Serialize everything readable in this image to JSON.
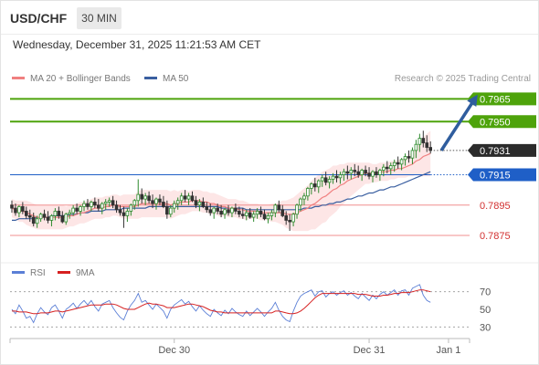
{
  "header": {
    "pair": "USD/CHF",
    "timeframe": "30 MIN",
    "datetime": "Wednesday, December 31, 2025 11:21:53 AM CET",
    "copyright": "Research © 2025 Trading Central"
  },
  "legend": {
    "ma20_bb": "MA 20 + Bollinger Bands",
    "ma50": "MA 50",
    "rsi": "RSI",
    "rsi_ma": "9MA"
  },
  "colors": {
    "candle_up": "#2e8b2e",
    "candle_down": "#333333",
    "ma20": "#f08080",
    "ma50": "#3a5fa0",
    "bollinger_fill": "#fde3e3",
    "resistance": "#4ea30b",
    "pivot": "#1f5fc7",
    "support": "#f08f8f",
    "current_price_bg": "#2b2b2b",
    "arrow": "#2f5d9e",
    "rsi": "#5b7fd6",
    "rsi_ma": "#d62020"
  },
  "chart_data": {
    "type": "candlestick",
    "ylim": [
      0.786,
      0.797
    ],
    "levels": [
      {
        "value": 0.7965,
        "label": "0.7965",
        "kind": "resistance"
      },
      {
        "value": 0.795,
        "label": "0.7950",
        "kind": "resistance"
      },
      {
        "value": 0.7931,
        "label": "0.7931",
        "kind": "current"
      },
      {
        "value": 0.7915,
        "label": "0.7915",
        "kind": "pivot"
      },
      {
        "value": 0.7895,
        "label": "0.7895",
        "kind": "support"
      },
      {
        "value": 0.7875,
        "label": "0.7875",
        "kind": "support"
      }
    ],
    "x_ticks": [
      "Dec 30",
      "Dec 31",
      "Jan 1"
    ],
    "x_tick_index": [
      45,
      99,
      121
    ],
    "forecast_arrow": {
      "from_index": 118,
      "from": 0.7931,
      "to_index": 131,
      "to": 0.7965
    },
    "candles": [
      [
        0.7895,
        0.7898,
        0.789,
        0.7893
      ],
      [
        0.7893,
        0.7896,
        0.7888,
        0.789
      ],
      [
        0.789,
        0.7895,
        0.7887,
        0.7894
      ],
      [
        0.7894,
        0.7897,
        0.7889,
        0.7891
      ],
      [
        0.7891,
        0.7894,
        0.7886,
        0.7888
      ],
      [
        0.7888,
        0.7892,
        0.7884,
        0.7887
      ],
      [
        0.7887,
        0.789,
        0.7881,
        0.7883
      ],
      [
        0.7883,
        0.7888,
        0.788,
        0.7886
      ],
      [
        0.7886,
        0.789,
        0.7884,
        0.7889
      ],
      [
        0.7889,
        0.7892,
        0.7885,
        0.7887
      ],
      [
        0.7887,
        0.7891,
        0.7883,
        0.7885
      ],
      [
        0.7885,
        0.7889,
        0.7881,
        0.7888
      ],
      [
        0.7888,
        0.7893,
        0.7885,
        0.7891
      ],
      [
        0.7891,
        0.7894,
        0.7886,
        0.7888
      ],
      [
        0.7888,
        0.7891,
        0.7883,
        0.7884
      ],
      [
        0.7884,
        0.789,
        0.7882,
        0.7889
      ],
      [
        0.7889,
        0.7892,
        0.7886,
        0.789
      ],
      [
        0.789,
        0.7895,
        0.7888,
        0.7893
      ],
      [
        0.7893,
        0.7896,
        0.7889,
        0.7891
      ],
      [
        0.7891,
        0.7895,
        0.7888,
        0.7894
      ],
      [
        0.7894,
        0.7898,
        0.7891,
        0.7896
      ],
      [
        0.7896,
        0.7899,
        0.7892,
        0.7894
      ],
      [
        0.7894,
        0.7898,
        0.7891,
        0.7897
      ],
      [
        0.7897,
        0.79,
        0.7893,
        0.7895
      ],
      [
        0.7895,
        0.7899,
        0.7891,
        0.7893
      ],
      [
        0.7893,
        0.7897,
        0.7889,
        0.7896
      ],
      [
        0.7896,
        0.7899,
        0.7892,
        0.7897
      ],
      [
        0.7897,
        0.79,
        0.7894,
        0.7898
      ],
      [
        0.7898,
        0.7901,
        0.7893,
        0.7895
      ],
      [
        0.7895,
        0.7898,
        0.789,
        0.7892
      ],
      [
        0.7892,
        0.7895,
        0.7888,
        0.789
      ],
      [
        0.789,
        0.7894,
        0.788,
        0.7888
      ],
      [
        0.7888,
        0.7893,
        0.7884,
        0.7891
      ],
      [
        0.7891,
        0.7896,
        0.7888,
        0.7895
      ],
      [
        0.7895,
        0.7899,
        0.7892,
        0.7898
      ],
      [
        0.7898,
        0.7912,
        0.7894,
        0.7902
      ],
      [
        0.7902,
        0.7906,
        0.7896,
        0.7899
      ],
      [
        0.7899,
        0.7903,
        0.7895,
        0.7901
      ],
      [
        0.7901,
        0.7904,
        0.7896,
        0.7898
      ],
      [
        0.7898,
        0.7902,
        0.7893,
        0.7896
      ],
      [
        0.7896,
        0.79,
        0.7892,
        0.7899
      ],
      [
        0.7899,
        0.7902,
        0.7895,
        0.7897
      ],
      [
        0.7897,
        0.7901,
        0.7893,
        0.7894
      ],
      [
        0.7894,
        0.7898,
        0.7886,
        0.7889
      ],
      [
        0.7889,
        0.7895,
        0.7887,
        0.7893
      ],
      [
        0.7893,
        0.7898,
        0.789,
        0.7896
      ],
      [
        0.7896,
        0.79,
        0.7892,
        0.7898
      ],
      [
        0.7898,
        0.7903,
        0.7895,
        0.7901
      ],
      [
        0.7901,
        0.7905,
        0.7897,
        0.7899
      ],
      [
        0.7899,
        0.7903,
        0.7895,
        0.7901
      ],
      [
        0.7901,
        0.7904,
        0.7897,
        0.7898
      ],
      [
        0.7898,
        0.7901,
        0.7893,
        0.7895
      ],
      [
        0.7895,
        0.7899,
        0.7891,
        0.7897
      ],
      [
        0.7897,
        0.79,
        0.7893,
        0.7894
      ],
      [
        0.7894,
        0.7897,
        0.789,
        0.7892
      ],
      [
        0.7892,
        0.7896,
        0.7888,
        0.789
      ],
      [
        0.789,
        0.7894,
        0.7886,
        0.7893
      ],
      [
        0.7893,
        0.7896,
        0.7889,
        0.7891
      ],
      [
        0.7891,
        0.7895,
        0.7887,
        0.7889
      ],
      [
        0.7889,
        0.7893,
        0.7886,
        0.7892
      ],
      [
        0.7892,
        0.7895,
        0.7888,
        0.789
      ],
      [
        0.789,
        0.7894,
        0.7887,
        0.7893
      ],
      [
        0.7893,
        0.7896,
        0.7889,
        0.7891
      ],
      [
        0.7891,
        0.7894,
        0.7887,
        0.7889
      ],
      [
        0.7889,
        0.7893,
        0.7886,
        0.7888
      ],
      [
        0.7888,
        0.7892,
        0.7885,
        0.789
      ],
      [
        0.789,
        0.7893,
        0.7886,
        0.7887
      ],
      [
        0.7887,
        0.7891,
        0.7884,
        0.7889
      ],
      [
        0.7889,
        0.7893,
        0.7886,
        0.7891
      ],
      [
        0.7891,
        0.7894,
        0.7887,
        0.7889
      ],
      [
        0.7889,
        0.7892,
        0.7885,
        0.7886
      ],
      [
        0.7886,
        0.789,
        0.7883,
        0.7888
      ],
      [
        0.7888,
        0.7892,
        0.7885,
        0.789
      ],
      [
        0.789,
        0.7896,
        0.7887,
        0.7895
      ],
      [
        0.7895,
        0.7898,
        0.789,
        0.7892
      ],
      [
        0.7892,
        0.7895,
        0.7887,
        0.7888
      ],
      [
        0.7888,
        0.7891,
        0.7882,
        0.7885
      ],
      [
        0.7885,
        0.7889,
        0.7878,
        0.7884
      ],
      [
        0.7884,
        0.789,
        0.7881,
        0.7889
      ],
      [
        0.7889,
        0.7896,
        0.7886,
        0.7895
      ],
      [
        0.7895,
        0.79,
        0.7891,
        0.7899
      ],
      [
        0.7899,
        0.7903,
        0.7895,
        0.7901
      ],
      [
        0.7901,
        0.7907,
        0.7898,
        0.7906
      ],
      [
        0.7906,
        0.791,
        0.7902,
        0.7909
      ],
      [
        0.7909,
        0.7913,
        0.7904,
        0.7907
      ],
      [
        0.7907,
        0.7912,
        0.7903,
        0.7911
      ],
      [
        0.7911,
        0.7915,
        0.7907,
        0.7913
      ],
      [
        0.7913,
        0.7917,
        0.7908,
        0.791
      ],
      [
        0.791,
        0.7914,
        0.7906,
        0.7912
      ],
      [
        0.7912,
        0.7916,
        0.7909,
        0.7914
      ],
      [
        0.7914,
        0.7918,
        0.791,
        0.7913
      ],
      [
        0.7913,
        0.7917,
        0.7909,
        0.7915
      ],
      [
        0.7915,
        0.7919,
        0.7911,
        0.7917
      ],
      [
        0.7917,
        0.7921,
        0.7912,
        0.7916
      ],
      [
        0.7916,
        0.792,
        0.7912,
        0.7918
      ],
      [
        0.7918,
        0.7922,
        0.7914,
        0.7917
      ],
      [
        0.7917,
        0.7921,
        0.7913,
        0.7915
      ],
      [
        0.7915,
        0.7919,
        0.7911,
        0.7918
      ],
      [
        0.7918,
        0.7921,
        0.7914,
        0.7916
      ],
      [
        0.7916,
        0.792,
        0.7912,
        0.7914
      ],
      [
        0.7914,
        0.7918,
        0.791,
        0.7917
      ],
      [
        0.7917,
        0.792,
        0.7913,
        0.7915
      ],
      [
        0.7915,
        0.7919,
        0.7911,
        0.7918
      ],
      [
        0.7918,
        0.7922,
        0.7914,
        0.792
      ],
      [
        0.792,
        0.7924,
        0.7916,
        0.7919
      ],
      [
        0.7919,
        0.7923,
        0.7915,
        0.7921
      ],
      [
        0.7921,
        0.7925,
        0.7917,
        0.7923
      ],
      [
        0.7923,
        0.7927,
        0.7919,
        0.7922
      ],
      [
        0.7922,
        0.7926,
        0.7918,
        0.7925
      ],
      [
        0.7925,
        0.7929,
        0.7921,
        0.7927
      ],
      [
        0.7927,
        0.7931,
        0.7923,
        0.7926
      ],
      [
        0.7926,
        0.7933,
        0.7922,
        0.7931
      ],
      [
        0.7931,
        0.7938,
        0.7926,
        0.7935
      ],
      [
        0.7935,
        0.7942,
        0.793,
        0.7939
      ],
      [
        0.7939,
        0.7944,
        0.7933,
        0.7936
      ],
      [
        0.7936,
        0.7941,
        0.793,
        0.7933
      ],
      [
        0.7933,
        0.7937,
        0.7929,
        0.7931
      ]
    ],
    "ma20": [
      0.7893,
      0.7892,
      0.7891,
      0.7891,
      0.789,
      0.7889,
      0.7888,
      0.7887,
      0.7887,
      0.7887,
      0.7887,
      0.7887,
      0.7887,
      0.7887,
      0.7887,
      0.7887,
      0.7888,
      0.7888,
      0.7889,
      0.789,
      0.789,
      0.7891,
      0.7892,
      0.7893,
      0.7893,
      0.7893,
      0.7894,
      0.7894,
      0.7895,
      0.7895,
      0.7894,
      0.7894,
      0.7894,
      0.7894,
      0.7894,
      0.7895,
      0.7896,
      0.7896,
      0.7896,
      0.7896,
      0.7896,
      0.7896,
      0.7896,
      0.7896,
      0.7895,
      0.7896,
      0.7896,
      0.7897,
      0.7897,
      0.7897,
      0.7898,
      0.7898,
      0.7898,
      0.7897,
      0.7897,
      0.7896,
      0.7896,
      0.7895,
      0.7894,
      0.7894,
      0.7893,
      0.7893,
      0.7893,
      0.7892,
      0.7892,
      0.7891,
      0.7891,
      0.7891,
      0.7891,
      0.789,
      0.789,
      0.789,
      0.789,
      0.789,
      0.789,
      0.789,
      0.7889,
      0.7889,
      0.7889,
      0.789,
      0.7891,
      0.7892,
      0.7893,
      0.7895,
      0.7896,
      0.7898,
      0.79,
      0.7901,
      0.7903,
      0.7905,
      0.7906,
      0.7908,
      0.7909,
      0.7911,
      0.7912,
      0.7913,
      0.7914,
      0.7915,
      0.7916,
      0.7916,
      0.7916,
      0.7916,
      0.7917,
      0.7917,
      0.7917,
      0.7918,
      0.7918,
      0.7919,
      0.7919,
      0.792,
      0.7921,
      0.7922,
      0.7924,
      0.7925,
      0.7927,
      0.7928,
      0.7929
    ],
    "bb_width": [
      0.0006,
      0.0006,
      0.0007,
      0.0007,
      0.0008,
      0.0008,
      0.0008,
      0.0008,
      0.0008,
      0.0008,
      0.0008,
      0.0008,
      0.0008,
      0.0008,
      0.0008,
      0.0007,
      0.0007,
      0.0007,
      0.0007,
      0.0007,
      0.0007,
      0.0007,
      0.0007,
      0.0007,
      0.0007,
      0.0007,
      0.0007,
      0.0007,
      0.0007,
      0.0007,
      0.0007,
      0.0008,
      0.0008,
      0.0008,
      0.0008,
      0.0009,
      0.0009,
      0.0009,
      0.0009,
      0.0009,
      0.0009,
      0.0009,
      0.0009,
      0.0009,
      0.0009,
      0.0009,
      0.0008,
      0.0008,
      0.0008,
      0.0007,
      0.0007,
      0.0007,
      0.0007,
      0.0007,
      0.0007,
      0.0007,
      0.0007,
      0.0007,
      0.0007,
      0.0006,
      0.0006,
      0.0006,
      0.0006,
      0.0006,
      0.0006,
      0.0006,
      0.0005,
      0.0005,
      0.0005,
      0.0005,
      0.0005,
      0.0005,
      0.0006,
      0.0006,
      0.0007,
      0.0008,
      0.0009,
      0.001,
      0.0011,
      0.0012,
      0.0013,
      0.0014,
      0.0015,
      0.0016,
      0.0017,
      0.0017,
      0.0017,
      0.0017,
      0.0016,
      0.0016,
      0.0015,
      0.0014,
      0.0013,
      0.0012,
      0.0011,
      0.001,
      0.0009,
      0.0008,
      0.0007,
      0.0007,
      0.0006,
      0.0006,
      0.0006,
      0.0006,
      0.0006,
      0.0006,
      0.0006,
      0.0006,
      0.0006,
      0.0007,
      0.0007,
      0.0008,
      0.0009,
      0.0011,
      0.0013,
      0.0014,
      0.0015
    ],
    "ma50": [
      0.7885,
      0.7885,
      0.7886,
      0.7886,
      0.7886,
      0.7886,
      0.7886,
      0.7887,
      0.7887,
      0.7887,
      0.7887,
      0.7888,
      0.7888,
      0.7888,
      0.7888,
      0.7888,
      0.7889,
      0.7889,
      0.7889,
      0.789,
      0.789,
      0.789,
      0.7891,
      0.7891,
      0.7891,
      0.7891,
      0.7892,
      0.7892,
      0.7892,
      0.7892,
      0.7892,
      0.7893,
      0.7893,
      0.7893,
      0.7893,
      0.7893,
      0.7893,
      0.7893,
      0.7894,
      0.7894,
      0.7894,
      0.7894,
      0.7894,
      0.7894,
      0.7894,
      0.7894,
      0.7894,
      0.7894,
      0.7894,
      0.7894,
      0.7894,
      0.7894,
      0.7894,
      0.7894,
      0.7894,
      0.7894,
      0.7894,
      0.7894,
      0.7893,
      0.7893,
      0.7893,
      0.7893,
      0.7893,
      0.7893,
      0.7893,
      0.7892,
      0.7892,
      0.7892,
      0.7892,
      0.7892,
      0.7892,
      0.7892,
      0.7892,
      0.7892,
      0.7892,
      0.7892,
      0.7892,
      0.7892,
      0.7892,
      0.7892,
      0.7892,
      0.7893,
      0.7893,
      0.7893,
      0.7894,
      0.7894,
      0.7895,
      0.7895,
      0.7896,
      0.7896,
      0.7897,
      0.7897,
      0.7898,
      0.7899,
      0.7899,
      0.79,
      0.7901,
      0.7901,
      0.7902,
      0.7903,
      0.7903,
      0.7904,
      0.7905,
      0.7905,
      0.7906,
      0.7907,
      0.7907,
      0.7908,
      0.7909,
      0.791,
      0.7911,
      0.7912,
      0.7913,
      0.7914,
      0.7915,
      0.7916,
      0.7917
    ],
    "rsi": {
      "ylim": [
        20,
        80
      ],
      "ticks": [
        70,
        50,
        30
      ],
      "values": [
        50,
        45,
        55,
        48,
        40,
        42,
        35,
        45,
        52,
        47,
        44,
        52,
        55,
        48,
        40,
        50,
        53,
        57,
        51,
        56,
        60,
        55,
        60,
        53,
        48,
        56,
        58,
        60,
        52,
        46,
        41,
        38,
        48,
        55,
        60,
        68,
        58,
        60,
        55,
        50,
        56,
        52,
        48,
        40,
        50,
        55,
        58,
        61,
        56,
        59,
        53,
        48,
        54,
        49,
        45,
        42,
        50,
        46,
        43,
        49,
        45,
        51,
        47,
        44,
        42,
        48,
        43,
        47,
        51,
        47,
        42,
        47,
        51,
        58,
        49,
        42,
        38,
        36,
        48,
        58,
        65,
        68,
        70,
        72,
        65,
        70,
        71,
        64,
        68,
        70,
        66,
        69,
        71,
        66,
        69,
        65,
        62,
        68,
        64,
        60,
        66,
        62,
        67,
        70,
        66,
        69,
        72,
        66,
        71,
        72,
        66,
        74,
        76,
        78,
        66,
        60,
        58
      ],
      "ma": [
        48,
        48,
        47,
        47,
        47,
        46,
        45,
        45,
        46,
        46,
        46,
        47,
        48,
        48,
        47,
        48,
        49,
        50,
        51,
        52,
        53,
        54,
        55,
        55,
        55,
        55,
        56,
        56,
        56,
        55,
        53,
        51,
        50,
        50,
        50,
        52,
        54,
        56,
        57,
        56,
        56,
        55,
        54,
        52,
        52,
        52,
        53,
        54,
        55,
        56,
        56,
        55,
        54,
        53,
        51,
        49,
        48,
        47,
        47,
        46,
        46,
        46,
        46,
        46,
        46,
        46,
        46,
        46,
        46,
        46,
        46,
        46,
        46,
        48,
        48,
        47,
        46,
        45,
        45,
        46,
        48,
        51,
        55,
        59,
        63,
        66,
        68,
        68,
        68,
        68,
        68,
        68,
        68,
        68,
        68,
        68,
        67,
        67,
        67,
        66,
        65,
        65,
        65,
        66,
        66,
        67,
        68,
        68,
        69,
        69,
        69,
        70,
        71,
        72,
        72,
        71,
        70
      ]
    }
  }
}
